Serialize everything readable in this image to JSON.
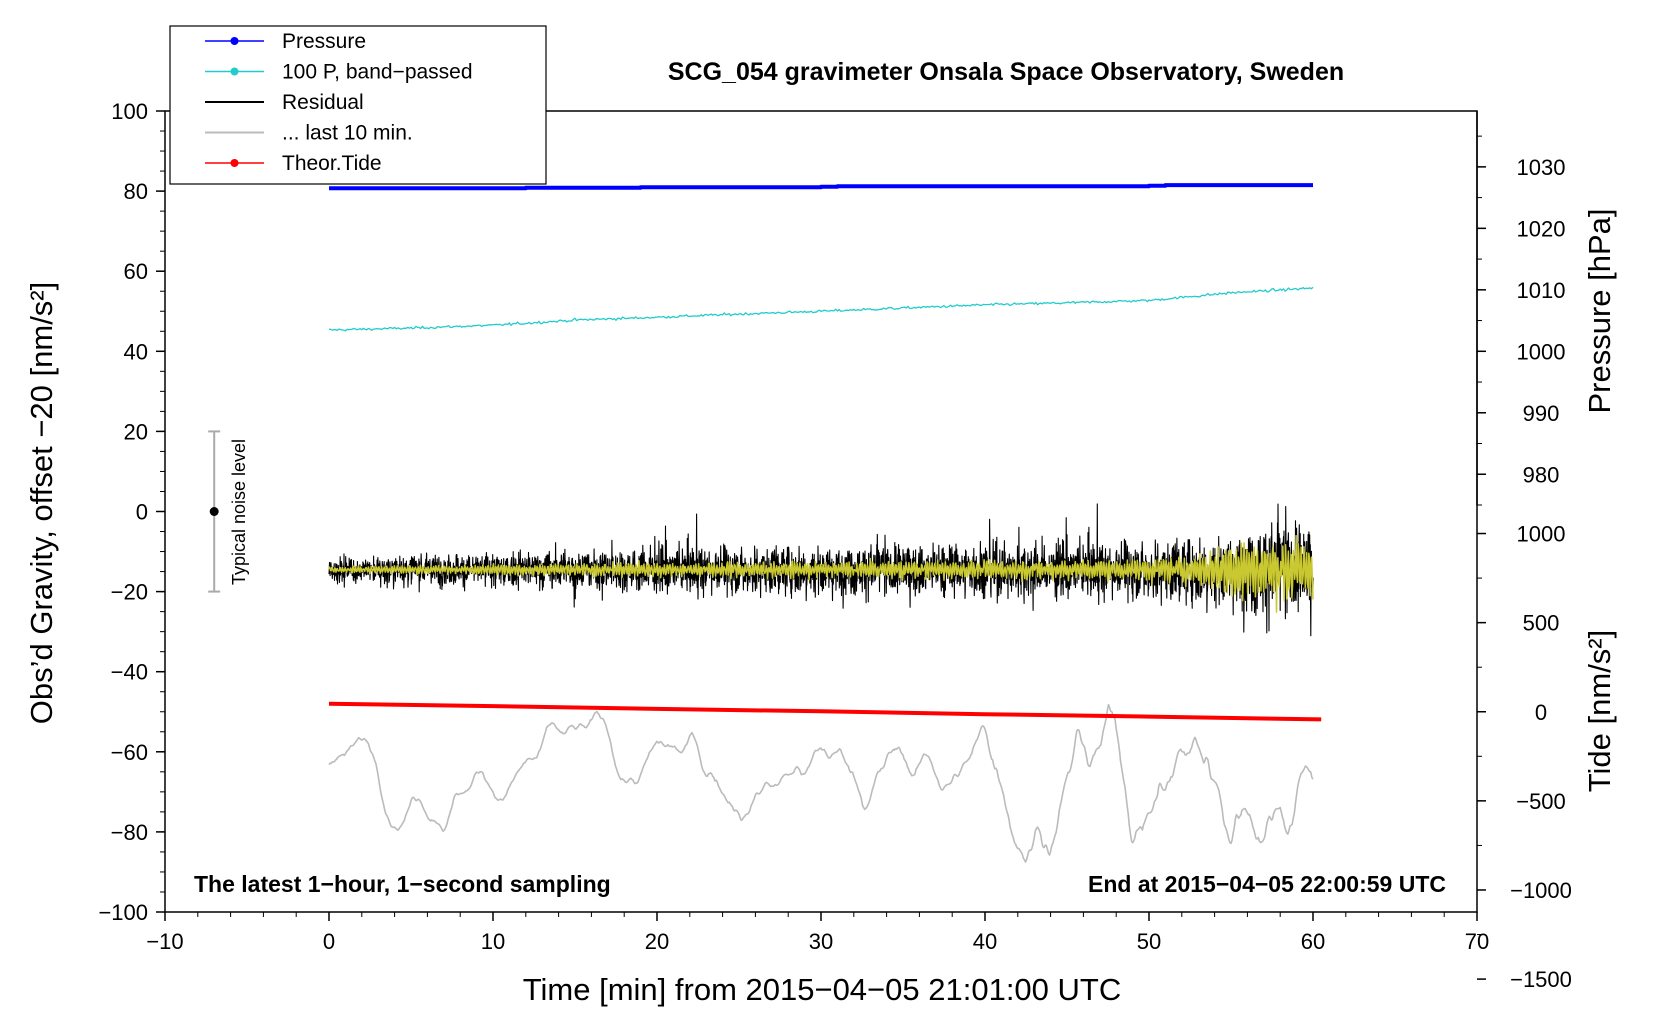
{
  "chart_data": {
    "type": "line",
    "title": "SCG_054 gravimeter Onsala Space Observatory, Sweden",
    "xlabel": "Time [min] from 2015−04−05 21:01:00 UTC",
    "ylabel_left": "Obs’d Gravity, offset −20 [nm/s²]",
    "ylabel_right_top": "Pressure [hPa]",
    "ylabel_right_bottom": "Tide [nm/s²]",
    "xlim": [
      -10,
      70
    ],
    "ylim_left": [
      -100,
      100
    ],
    "x_ticks": [
      -10,
      0,
      10,
      20,
      30,
      40,
      50,
      60,
      70
    ],
    "x_tick_labels": [
      "−10",
      "0",
      "10",
      "20",
      "30",
      "40",
      "50",
      "60",
      "70"
    ],
    "y_ticks_left": [
      -100,
      -80,
      -60,
      -40,
      -20,
      0,
      20,
      40,
      60,
      80,
      100
    ],
    "y_tick_labels_left": [
      "−100",
      "−80",
      "−60",
      "−40",
      "−20",
      "0",
      "20",
      "40",
      "60",
      "80",
      "100"
    ],
    "pressure_axis": {
      "ticks": [
        980,
        990,
        1000,
        1010,
        1020,
        1030
      ],
      "tick_labels": [
        "980",
        "990",
        "1000",
        "1010",
        "1020",
        "1030"
      ],
      "ref_value": 1000,
      "ref_left_y": 40,
      "left_units_per_hpa": 1.535
    },
    "tide_axis": {
      "ticks": [
        -1500,
        -1000,
        -500,
        0,
        500,
        1000
      ],
      "tick_labels": [
        "−1500",
        "−1000",
        "−500",
        "0",
        "500",
        "1000"
      ],
      "ref_value": 0,
      "ref_left_y": -50,
      "left_units_per_nms2": 0.0445
    },
    "legend": {
      "position": "top-left",
      "entries": [
        {
          "label": "Pressure",
          "color": "#0000ff",
          "marker": true
        },
        {
          "label": "100 P, band−passed",
          "color": "#22cccc",
          "marker": true
        },
        {
          "label": "Residual",
          "color": "#000000",
          "marker": false
        },
        {
          "label": "... last 10 min.",
          "color": "#bbbbbb",
          "marker": false
        },
        {
          "label": "Theor.Tide",
          "color": "#ff0000",
          "marker": true
        }
      ]
    },
    "annotations": {
      "bottom_left": "The latest 1−hour, 1−second sampling",
      "bottom_right": "End at 2015−04−05 22:00:59 UTC",
      "noise_label": "Typical noise level"
    },
    "noise_bar": {
      "x": -7,
      "center": 0,
      "low": -20,
      "high": 20
    },
    "series": [
      {
        "name": "Pressure",
        "color": "#0000ff",
        "width": 4,
        "x": [
          0,
          12,
          12,
          19,
          19,
          30,
          30,
          31,
          31,
          50,
          50,
          51,
          51,
          60
        ],
        "y": [
          80.7,
          80.7,
          80.85,
          80.85,
          80.95,
          80.95,
          81.1,
          81.1,
          81.2,
          81.2,
          81.35,
          81.35,
          81.5,
          81.5
        ]
      },
      {
        "name": "100 P, band−passed",
        "color": "#22cccc",
        "width": 1.3,
        "x": [
          0,
          5,
          10,
          15,
          20,
          25,
          30,
          35,
          40,
          45,
          50,
          55,
          60
        ],
        "y": [
          45.3,
          45.8,
          46.5,
          47.8,
          48.5,
          49.3,
          50,
          50.8,
          51.6,
          52.1,
          52.7,
          54.6,
          55.8
        ],
        "noise": 0.55
      },
      {
        "name": "Residual",
        "color": "#000000",
        "width": 1.1,
        "x_start": 0,
        "x_end": 60,
        "base": -14.5,
        "amplitude_x": [
          0,
          8,
          20,
          35,
          48,
          55,
          57,
          60
        ],
        "amplitude_y": [
          3.5,
          5,
          7,
          8,
          8.5,
          11,
          15,
          14
        ]
      },
      {
        "name": "Residual (filtered)",
        "color": "#c9c830",
        "width": 1.5,
        "x_start": 0,
        "x_end": 60,
        "base": -14.5,
        "amplitude_x": [
          0,
          20,
          48,
          53,
          56,
          60
        ],
        "amplitude_y": [
          0.8,
          1.8,
          2.5,
          4,
          8,
          7
        ]
      },
      {
        "name": "... last 10 min.",
        "color": "#bbbbbb",
        "width": 1.6,
        "x_start": 0,
        "x_end": 60,
        "base": -64,
        "amplitude_x": [
          0,
          20,
          38,
          41,
          45,
          55,
          60
        ],
        "amplitude_y": [
          7,
          9,
          10,
          15,
          17,
          20,
          16
        ]
      },
      {
        "name": "Theor.Tide",
        "color": "#ff0000",
        "width": 4,
        "x": [
          0,
          10,
          20,
          30,
          40,
          50,
          60.5
        ],
        "y": [
          -48,
          -48.6,
          -49.3,
          -49.9,
          -50.6,
          -51.2,
          -51.9
        ]
      }
    ]
  }
}
